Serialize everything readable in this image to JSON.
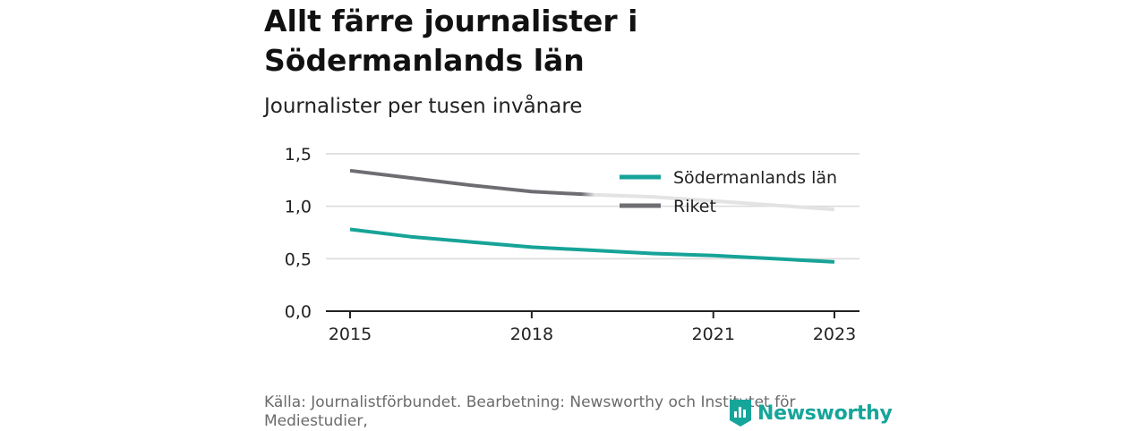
{
  "header": {
    "title": "Allt färre journalister i Södermanlands län",
    "subtitle": "Journalister per tusen invånare"
  },
  "footer": {
    "source": "Källa: Journalistförbundet. Bearbetning: Newsworthy och Institutet för Mediestudier,",
    "logo_text": "Newsworthy"
  },
  "colors": {
    "sodermanland": "#17a398",
    "riket": "#6e6d72",
    "riket_faded": "#e3e3e3",
    "grid": "#d9d9d9",
    "axis": "#222222",
    "logo": "#16a59a"
  },
  "chart_data": {
    "type": "line",
    "x": [
      2015,
      2016,
      2017,
      2018,
      2019,
      2020,
      2021,
      2022,
      2023
    ],
    "xticks": [
      2015,
      2018,
      2021,
      2023
    ],
    "xtick_labels": [
      "2015",
      "2018",
      "2021",
      "2023"
    ],
    "yticks": [
      0,
      0.5,
      1.0,
      1.5
    ],
    "ytick_labels": [
      "0,0",
      "0,5",
      "1,0",
      "1,5"
    ],
    "ylim": [
      0,
      1.5
    ],
    "xlim": [
      2015,
      2023
    ],
    "grid": true,
    "legend": "top-right",
    "series": [
      {
        "name": "Södermanlands län",
        "color": "#17a398",
        "values": [
          0.78,
          0.71,
          0.66,
          0.61,
          0.58,
          0.55,
          0.53,
          0.5,
          0.47
        ]
      },
      {
        "name": "Riket",
        "color": "#6e6d72",
        "values": [
          1.34,
          1.27,
          1.2,
          1.14,
          1.11,
          1.09,
          1.05,
          1.01,
          0.97
        ]
      }
    ]
  }
}
